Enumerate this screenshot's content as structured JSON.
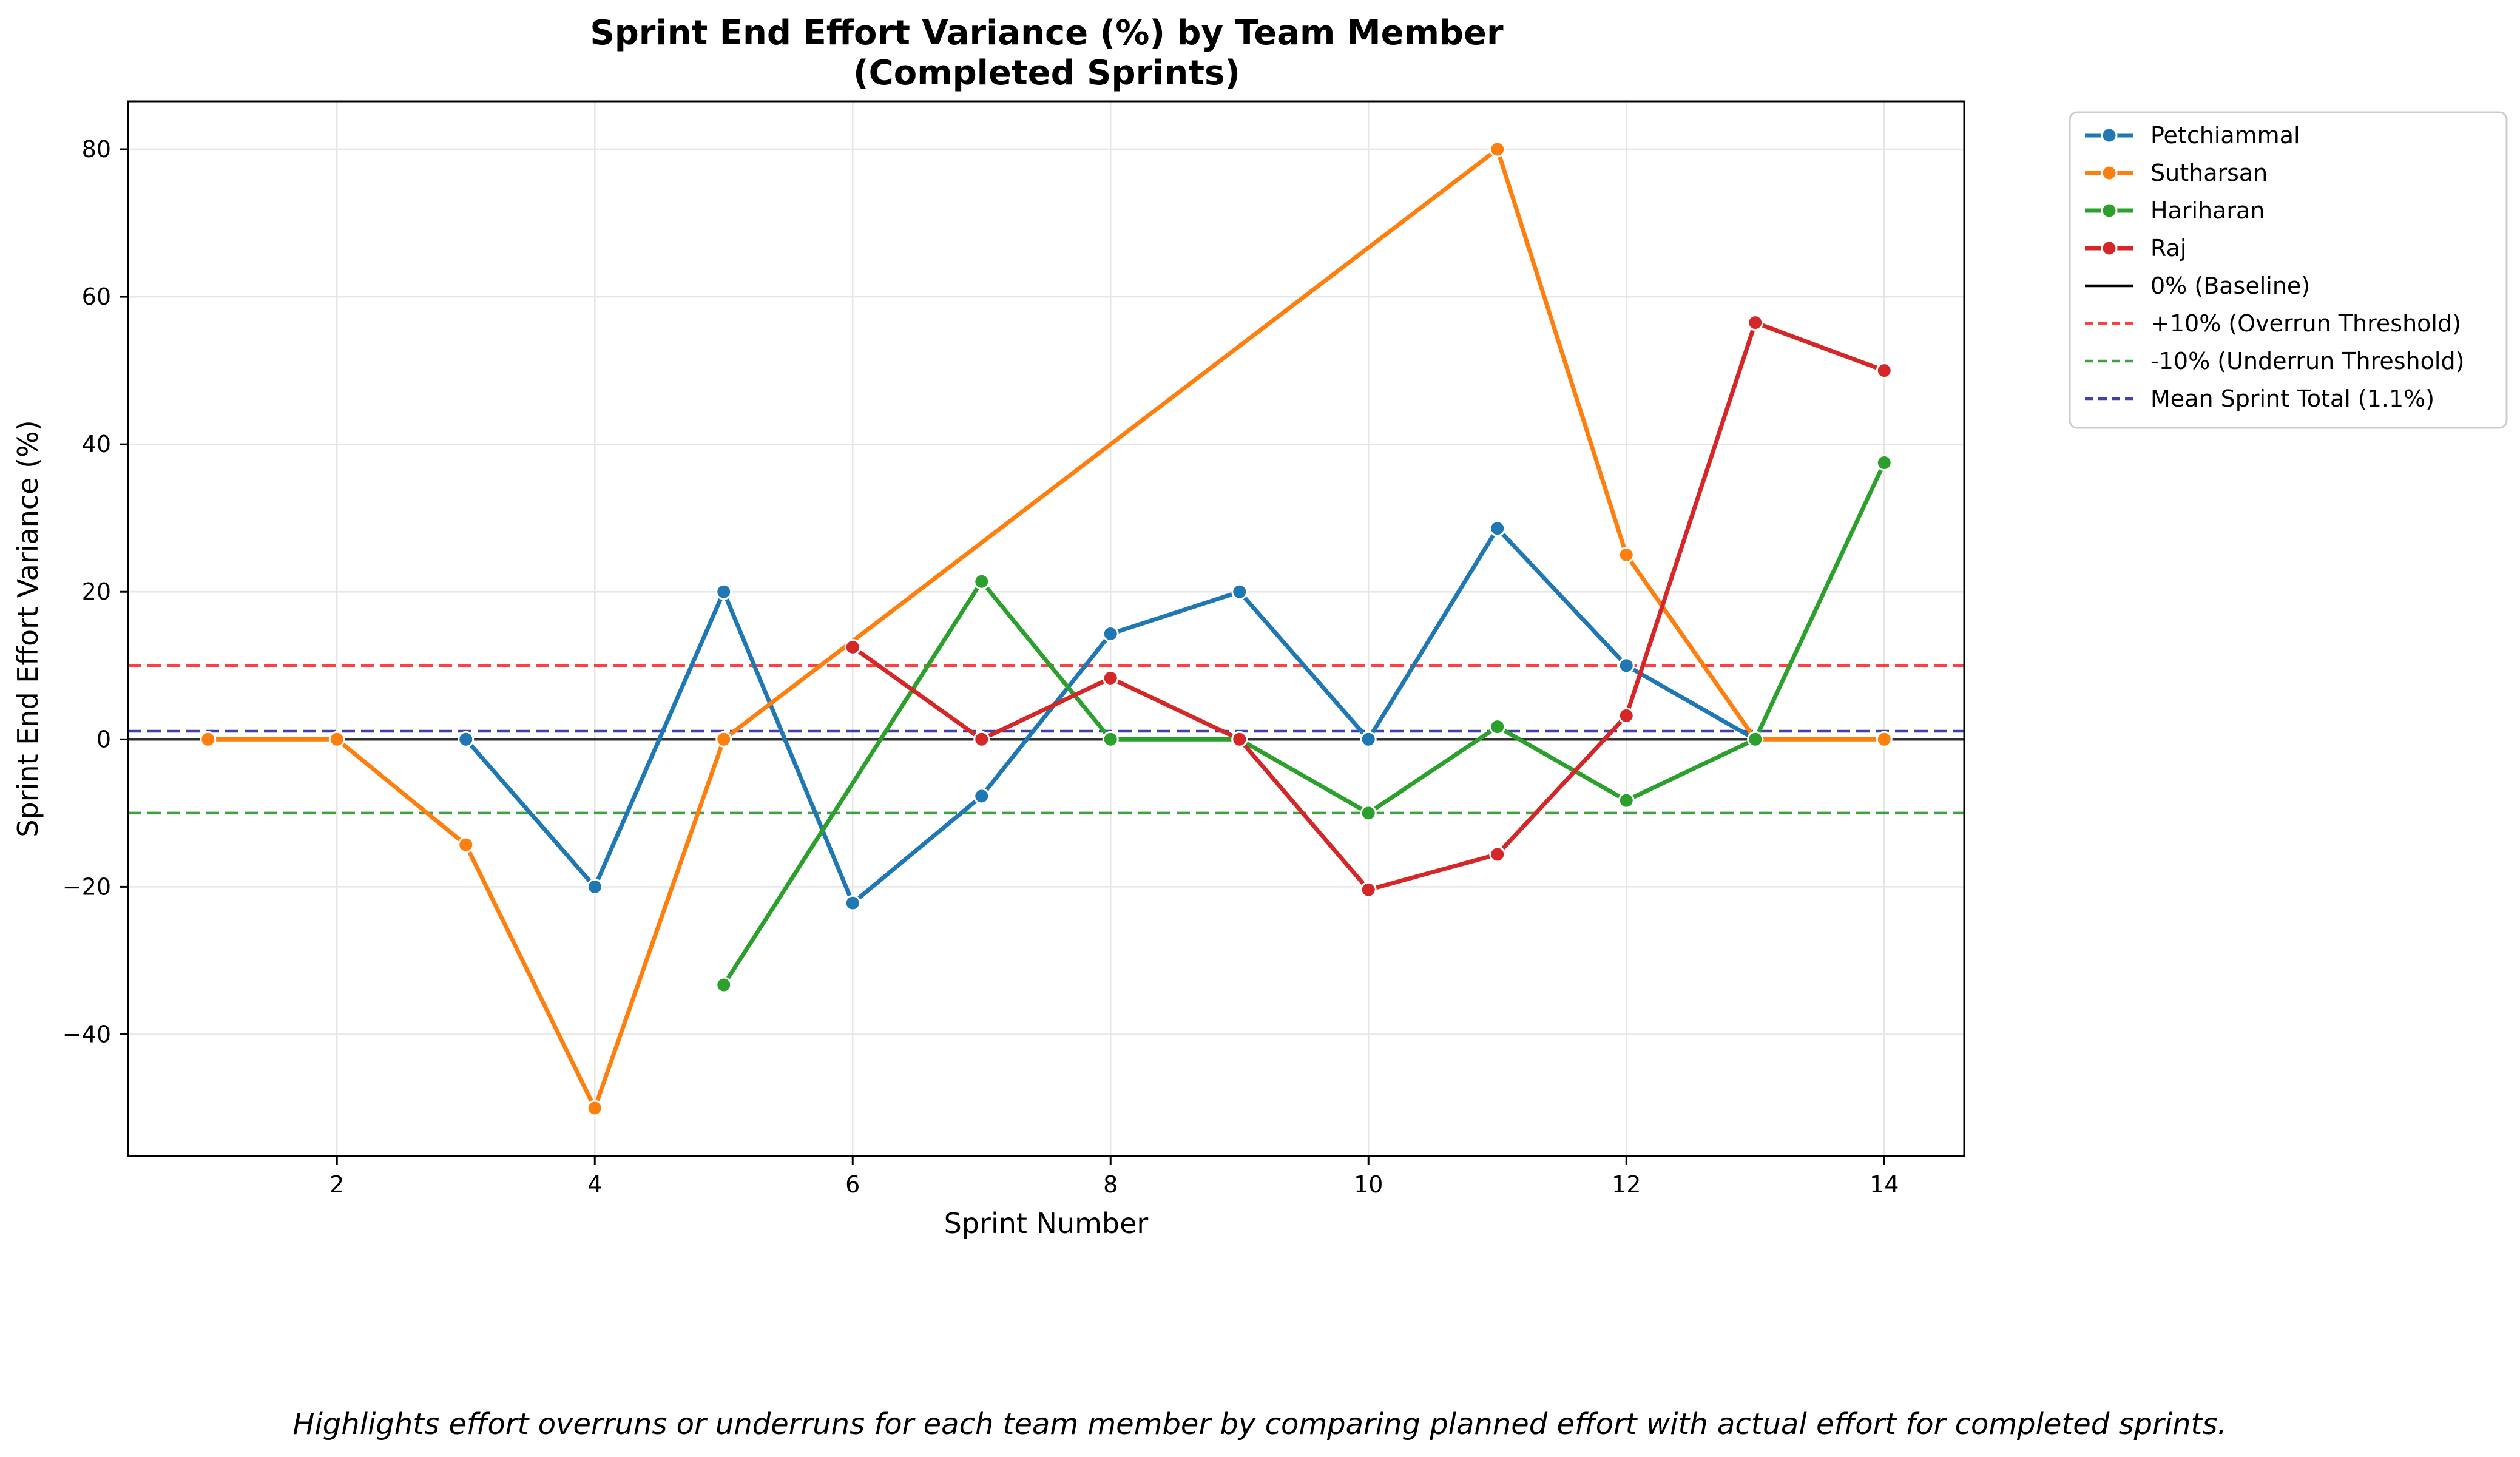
{
  "chart_data": {
    "type": "line",
    "title": "Sprint End Effort Variance (%) by Team Member",
    "subtitle": "(Completed Sprints)",
    "xlabel": "Sprint Number",
    "ylabel": "Sprint End Effort Variance (%)",
    "xlim": [
      0.38,
      14.62
    ],
    "ylim": [
      -56.5,
      86.5
    ],
    "xticks": [
      2,
      4,
      6,
      8,
      10,
      12,
      14
    ],
    "yticks": [
      -40,
      -20,
      0,
      20,
      40,
      60,
      80
    ],
    "ytick_labels": [
      "−40",
      "−20",
      "0",
      "20",
      "40",
      "60",
      "80"
    ],
    "grid": true,
    "legend_position": "outside-top-right",
    "series": [
      {
        "name": "Petchiammal",
        "color": "#1f77b4",
        "x": [
          3,
          4,
          5,
          6,
          7,
          8,
          9,
          10,
          11,
          12,
          13
        ],
        "y": [
          0,
          -20,
          20,
          -22.2,
          -7.7,
          14.3,
          20,
          0,
          28.6,
          10,
          0
        ]
      },
      {
        "name": "Sutharsan",
        "color": "#ff7f0e",
        "x": [
          1,
          2,
          3,
          4,
          5,
          11,
          12,
          13,
          14
        ],
        "y": [
          0,
          0,
          -14.3,
          -50,
          0,
          80,
          25,
          0,
          0
        ]
      },
      {
        "name": "Hariharan",
        "color": "#2ca02c",
        "x": [
          5,
          7,
          8,
          9,
          10,
          11,
          12,
          13,
          14
        ],
        "y": [
          -33.3,
          21.4,
          0,
          0,
          -10,
          1.7,
          -8.3,
          0,
          37.5
        ]
      },
      {
        "name": "Raj",
        "color": "#d62728",
        "x": [
          6,
          7,
          8,
          9,
          10,
          11,
          12,
          13,
          14
        ],
        "y": [
          12.5,
          0,
          8.3,
          0,
          -20.4,
          -15.6,
          3.2,
          56.5,
          50
        ]
      }
    ],
    "reference_lines": [
      {
        "name": "0% (Baseline)",
        "y": 0,
        "color": "#000000",
        "style": "solid"
      },
      {
        "name": "+10% (Overrun Threshold)",
        "y": 10,
        "color": "#ff0000",
        "style": "dashed"
      },
      {
        "name": "-10% (Underrun Threshold)",
        "y": -10,
        "color": "#008000",
        "style": "dashed"
      },
      {
        "name": "Mean Sprint Total (1.1%)",
        "y": 1.1,
        "color": "#00008b",
        "style": "dashed"
      }
    ],
    "caption": "Highlights effort overruns or underruns for each team member by comparing planned effort with actual effort for completed sprints."
  }
}
